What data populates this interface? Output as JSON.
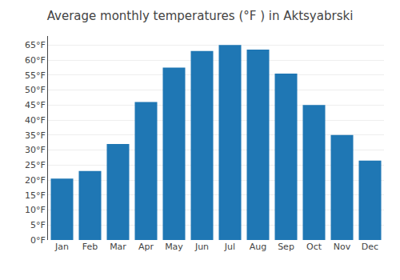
{
  "chart_data": {
    "type": "bar",
    "title": "Average monthly temperatures (°F ) in Aktsyabrski",
    "categories": [
      "Jan",
      "Feb",
      "Mar",
      "Apr",
      "May",
      "Jun",
      "Jul",
      "Aug",
      "Sep",
      "Oct",
      "Nov",
      "Dec"
    ],
    "values": [
      20.5,
      23.0,
      32.0,
      46.0,
      57.5,
      63.0,
      65.0,
      63.5,
      55.5,
      45.0,
      35.0,
      26.5
    ],
    "ylim": [
      0,
      68
    ],
    "yticks": [
      {
        "value": 0,
        "label": "0°F"
      },
      {
        "value": 5,
        "label": "5°F"
      },
      {
        "value": 10,
        "label": "10°F"
      },
      {
        "value": 15,
        "label": "15°F"
      },
      {
        "value": 20,
        "label": "20°F"
      },
      {
        "value": 25,
        "label": "25°F"
      },
      {
        "value": 30,
        "label": "30°F"
      },
      {
        "value": 35,
        "label": "35°F"
      },
      {
        "value": 40,
        "label": "40°F"
      },
      {
        "value": 45,
        "label": "45°F"
      },
      {
        "value": 50,
        "label": "50°F"
      },
      {
        "value": 55,
        "label": "55°F"
      },
      {
        "value": 60,
        "label": "60°F"
      },
      {
        "value": 65,
        "label": "65°F"
      }
    ],
    "grid": true
  }
}
